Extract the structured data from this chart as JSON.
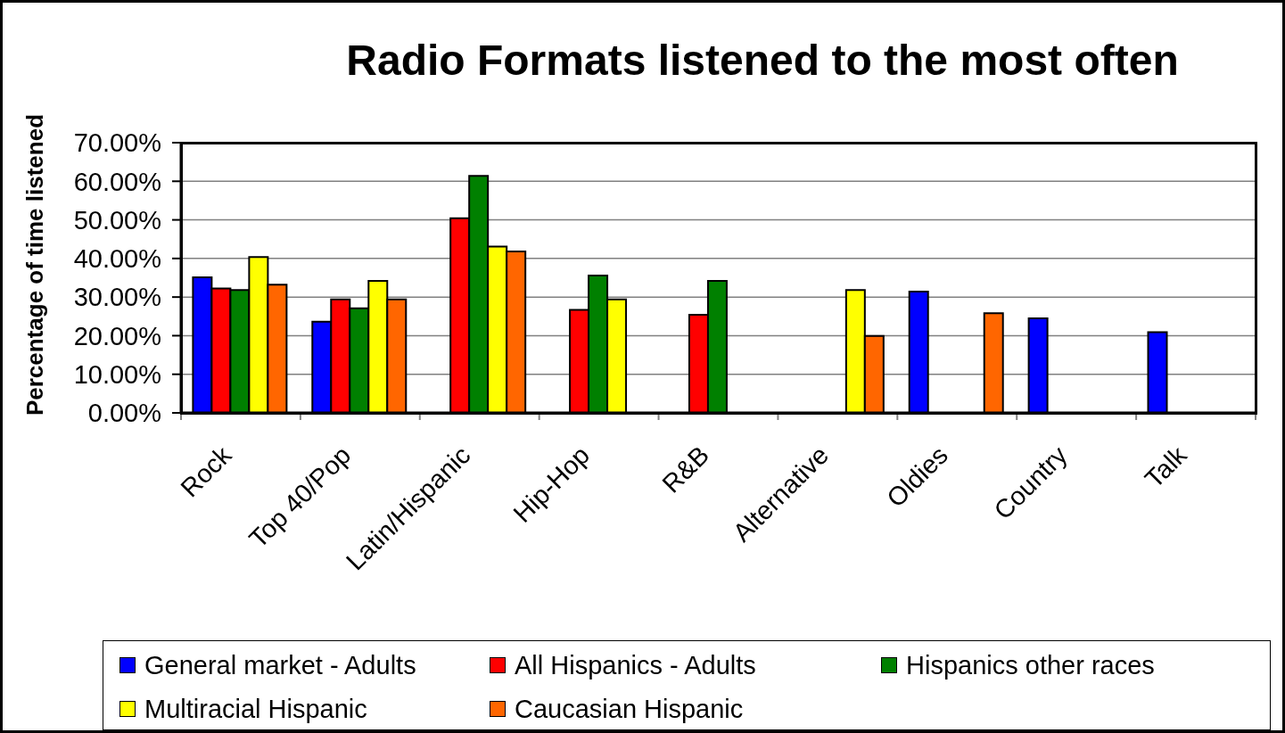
{
  "chart_data": {
    "type": "bar",
    "title": "Radio Formats listened to the most often",
    "ylabel": "Percentage of time listened",
    "categories": [
      "Rock",
      "Top 40/Pop",
      "Latin/Hispanic",
      "Hip-Hop",
      "R&B",
      "Alternative",
      "Oldies",
      "Country",
      "Talk"
    ],
    "series": [
      {
        "name": "General market - Adults",
        "color": "#0000ff",
        "values": [
          35.1,
          23.6,
          null,
          null,
          null,
          null,
          31.4,
          24.5,
          20.9
        ]
      },
      {
        "name": "All Hispanics - Adults",
        "color": "#ff0000",
        "values": [
          32.2,
          29.4,
          50.4,
          26.7,
          25.4,
          null,
          null,
          null,
          null
        ]
      },
      {
        "name": "Hispanics other races",
        "color": "#008000",
        "values": [
          31.8,
          27.1,
          61.4,
          35.6,
          34.2,
          null,
          null,
          null,
          null
        ]
      },
      {
        "name": "Multiracial Hispanic",
        "color": "#ffff00",
        "values": [
          40.4,
          34.2,
          43.1,
          29.4,
          null,
          31.8,
          null,
          null,
          null
        ]
      },
      {
        "name": "Caucasian Hispanic",
        "color": "#ff6600",
        "values": [
          33.2,
          29.4,
          41.8,
          null,
          null,
          19.9,
          25.8,
          null,
          null
        ]
      }
    ],
    "ylim": [
      0,
      70
    ],
    "yticks": [
      {
        "value": 0,
        "label": "0.00%"
      },
      {
        "value": 10,
        "label": "10.00%"
      },
      {
        "value": 20,
        "label": "20.00%"
      },
      {
        "value": 30,
        "label": "30.00%"
      },
      {
        "value": 40,
        "label": "40.00%"
      },
      {
        "value": 50,
        "label": "50.00%"
      },
      {
        "value": 60,
        "label": "60.00%"
      },
      {
        "value": 70,
        "label": "70.00%"
      }
    ],
    "grid": "y",
    "legend": "bottom"
  }
}
